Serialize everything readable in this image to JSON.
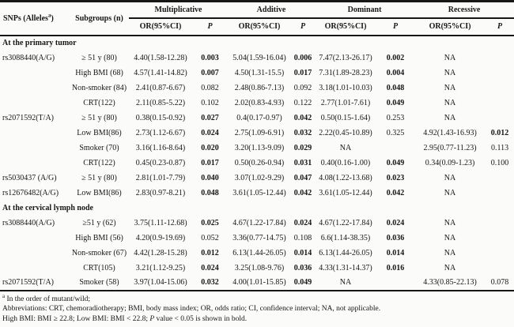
{
  "table": {
    "headers": {
      "snp_pre": "SNPs (Alleles",
      "snp_sup": "a",
      "snp_post": ")",
      "subgroups": "Subgroups (n)",
      "or": "OR(95%CI)",
      "p": "P"
    },
    "models": [
      "Multiplicative",
      "Additive",
      "Dominant",
      "Recessive"
    ],
    "rows": [
      {
        "section": "At the primary tumor"
      },
      {
        "snp": "rs3088440(A/G)",
        "subgroup": "≥ 51 y (80)",
        "cells": [
          "4.40(1.58-12.28)",
          "0.003",
          "5.04(1.59-16.04)",
          "0.006",
          "7.47(2.13-26.17)",
          "0.002",
          "NA",
          ""
        ],
        "bold": [
          0,
          1,
          0,
          1,
          0,
          1,
          0,
          0
        ]
      },
      {
        "snp": "",
        "subgroup": "High BMI (68)",
        "cells": [
          "4.57(1.41-14.82)",
          "0.007",
          "4.50(1.31-15.5)",
          "0.017",
          "7.31(1.89-28.23)",
          "0.004",
          "NA",
          ""
        ],
        "bold": [
          0,
          1,
          0,
          1,
          0,
          1,
          0,
          0
        ]
      },
      {
        "snp": "",
        "subgroup": "Non-smoker (84)",
        "cells": [
          "2.41(0.87-6.67)",
          "0.082",
          "2.48(0.86-7.13)",
          "0.092",
          "3.18(1.01-10.03)",
          "0.048",
          "NA",
          ""
        ],
        "bold": [
          0,
          0,
          0,
          0,
          0,
          1,
          0,
          0
        ]
      },
      {
        "snp": "",
        "subgroup": "CRT(122)",
        "cells": [
          "2.11(0.85-5.22)",
          "0.102",
          "2.02(0.83-4.93)",
          "0.122",
          "2.77(1.01-7.61)",
          "0.049",
          "NA",
          ""
        ],
        "bold": [
          0,
          0,
          0,
          0,
          0,
          1,
          0,
          0
        ]
      },
      {
        "snp": "rs2071592(T/A)",
        "subgroup": "≥ 51 y (80)",
        "cells": [
          "0.38(0.15-0.92)",
          "0.027",
          "0.4(0.17-0.97)",
          "0.042",
          "0.50(0.15-1.64)",
          "0.253",
          "NA",
          ""
        ],
        "bold": [
          0,
          1,
          0,
          1,
          0,
          0,
          0,
          0
        ]
      },
      {
        "snp": "",
        "subgroup": "Low BMI(86)",
        "cells": [
          "2.73(1.12-6.67)",
          "0.024",
          "2.75(1.09-6.91)",
          "0.032",
          "2.22(0.45-10.89)",
          "0.325",
          "4.92(1.43-16.93)",
          "0.012"
        ],
        "bold": [
          0,
          1,
          0,
          1,
          0,
          0,
          0,
          1
        ]
      },
      {
        "snp": "",
        "subgroup": "Smoker (70)",
        "cells": [
          "3.16(1.16-8.64)",
          "0.020",
          "3.20(1.13-9.09)",
          "0.029",
          "NA",
          "",
          "2.95(0.77-11.23)",
          "0.113"
        ],
        "bold": [
          0,
          1,
          0,
          1,
          0,
          0,
          0,
          0
        ]
      },
      {
        "snp": "",
        "subgroup": "CRT(122)",
        "cells": [
          "0.45(0.23-0.87)",
          "0.017",
          "0.50(0.26-0.94)",
          "0.031",
          "0.40(0.16-1.00)",
          "0.049",
          "0.34(0.09-1.23)",
          "0.100"
        ],
        "bold": [
          0,
          1,
          0,
          1,
          0,
          1,
          0,
          0
        ]
      },
      {
        "snp": "rs5030437 (A/G)",
        "subgroup": "≥ 51 y (80)",
        "cells": [
          "2.81(1.01-7.79)",
          "0.040",
          "3.07(1.02-9.29)",
          "0.047",
          "4.08(1.22-13.68)",
          "0.023",
          "NA",
          ""
        ],
        "bold": [
          0,
          1,
          0,
          1,
          0,
          1,
          0,
          0
        ]
      },
      {
        "snp": "rs12676482(A/G)",
        "subgroup": "Low BMI(86)",
        "cells": [
          "2.83(0.97-8.21)",
          "0.048",
          "3.61(1.05-12.44)",
          "0.042",
          "3.61(1.05-12.44)",
          "0.042",
          "NA",
          ""
        ],
        "bold": [
          0,
          1,
          0,
          1,
          0,
          1,
          0,
          0
        ]
      },
      {
        "section": "At the cervical lymph node"
      },
      {
        "snp": "rs3088440(A/G)",
        "subgroup": "≥51 y (62)",
        "cells": [
          "3.75(1.11-12.68)",
          "0.025",
          "4.67(1.22-17.84)",
          "0.024",
          "4.67(1.22-17.84)",
          "0.024",
          "NA",
          ""
        ],
        "bold": [
          0,
          1,
          0,
          1,
          0,
          1,
          0,
          0
        ]
      },
      {
        "snp": "",
        "subgroup": "High BMI (56)",
        "cells": [
          "4.20(0.9-19.69)",
          "0.052",
          "3.36(0.77-14.75)",
          "0.108",
          "6.6(1.14-38.35)",
          "0.036",
          "NA",
          ""
        ],
        "bold": [
          0,
          0,
          0,
          0,
          0,
          1,
          0,
          0
        ]
      },
      {
        "snp": "",
        "subgroup": "Non-smoker (67)",
        "cells": [
          "4.42(1.28-15.28)",
          "0.012",
          "6.13(1.44-26.05)",
          "0.014",
          "6.13(1.44-26.05)",
          "0.014",
          "NA",
          ""
        ],
        "bold": [
          0,
          1,
          0,
          1,
          0,
          1,
          0,
          0
        ]
      },
      {
        "snp": "",
        "subgroup": "CRT(105)",
        "cells": [
          "3.21(1.12-9.25)",
          "0.024",
          "3.25(1.08-9.76)",
          "0.036",
          "4.33(1.31-14.37)",
          "0.016",
          "NA",
          ""
        ],
        "bold": [
          0,
          1,
          0,
          1,
          0,
          1,
          0,
          0
        ]
      },
      {
        "snp": "rs2071592(T/A)",
        "subgroup": "Smoker (58)",
        "cells": [
          "3.97(1.04-15.06)",
          "0.032",
          "4.00(1.01-15.85)",
          "0.049",
          "NA",
          "",
          "4.33(0.85-22.13)",
          "0.078"
        ],
        "bold": [
          0,
          1,
          0,
          1,
          0,
          0,
          0,
          0
        ]
      }
    ]
  },
  "footnotes": {
    "sup": "a",
    "line1": " In the order of mutant/wild;",
    "line2": "Abbreviations: CRT, chemoradiotherapy; BMI, body mass index; OR, odds ratio; CI, confidence interval; NA, not applicable.",
    "line3_pre": "High BMI: BMI ≥ 22.8; Low BMI: BMI < 22.8; ",
    "line3_italic": "P",
    "line3_post": " value < 0.05 is shown in bold."
  }
}
